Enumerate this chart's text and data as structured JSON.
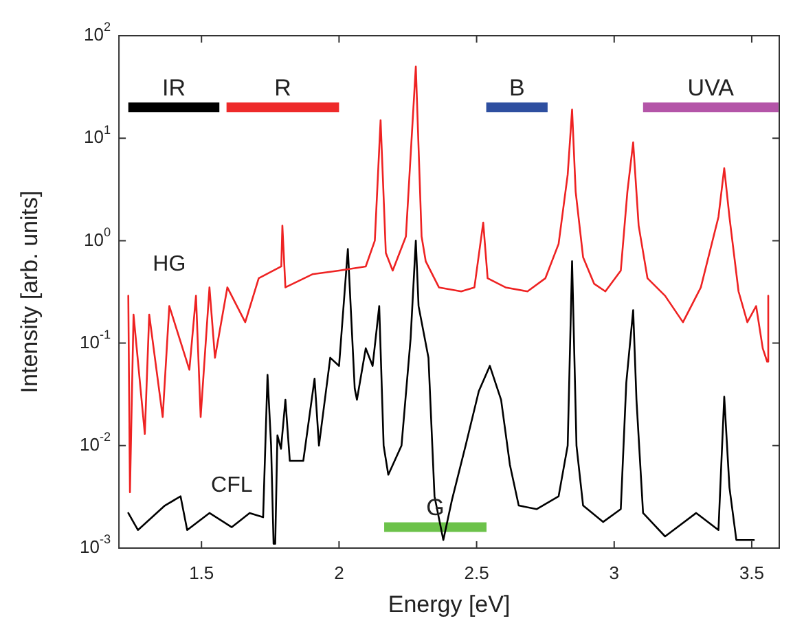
{
  "chart_data": {
    "type": "line",
    "xlabel": "Energy [eV]",
    "ylabel": "Intensity [arb. units]",
    "log": "y",
    "grid": false,
    "legend": false,
    "marker": "none",
    "line_style": "solid",
    "xlim": [
      1.2,
      3.6
    ],
    "xticks": [
      1.5,
      2,
      2.5,
      3,
      3.5
    ],
    "ylim": [
      0.001,
      100
    ],
    "yticks": [
      {
        "value": 0.001,
        "label": "10$^{-3}$"
      },
      {
        "value": 0.01,
        "label": "10$^{-2}$"
      },
      {
        "value": 0.1,
        "label": "10$^{-1}$"
      },
      {
        "value": 1,
        "label": "10$^{0}$"
      },
      {
        "value": 10,
        "label": "10$^{1}$"
      },
      {
        "value": 100,
        "label": "10$^{2}$"
      }
    ],
    "series": [
      {
        "name": "HG",
        "color": "#ee2222",
        "x": [
          1.234,
          1.24,
          1.253,
          1.294,
          1.31,
          1.359,
          1.383,
          1.456,
          1.48,
          1.497,
          1.529,
          1.549,
          1.594,
          1.659,
          1.708,
          1.79,
          1.794,
          1.805,
          1.903,
          2.0,
          2.097,
          2.13,
          2.151,
          2.17,
          2.195,
          2.243,
          2.279,
          2.3,
          2.315,
          2.363,
          2.444,
          2.492,
          2.524,
          2.54,
          2.605,
          2.685,
          2.75,
          2.798,
          2.831,
          2.847,
          2.86,
          2.887,
          2.927,
          2.968,
          3.024,
          3.048,
          3.069,
          3.089,
          3.121,
          3.185,
          3.25,
          3.315,
          3.379,
          3.4,
          3.419,
          3.452,
          3.484,
          3.516,
          3.54,
          3.556,
          3.56
        ],
        "values": [
          0.29,
          0.0035,
          0.19,
          0.013,
          0.19,
          0.019,
          0.23,
          0.055,
          0.29,
          0.019,
          0.35,
          0.072,
          0.35,
          0.16,
          0.43,
          0.56,
          1.4,
          0.35,
          0.47,
          0.51,
          0.56,
          1.0,
          15,
          0.76,
          0.51,
          1.1,
          50,
          1.1,
          0.63,
          0.35,
          0.32,
          0.35,
          1.5,
          0.43,
          0.35,
          0.32,
          0.43,
          0.93,
          4.4,
          19,
          3.0,
          0.69,
          0.38,
          0.32,
          0.51,
          3.0,
          9.1,
          1.4,
          0.43,
          0.29,
          0.16,
          0.35,
          1.7,
          5.1,
          1.7,
          0.32,
          0.16,
          0.23,
          0.089,
          0.066,
          0.29
        ]
      },
      {
        "name": "CFL",
        "color": "#000000",
        "x": [
          1.234,
          1.269,
          1.367,
          1.424,
          1.448,
          1.529,
          1.61,
          1.675,
          1.724,
          1.74,
          1.753,
          1.762,
          1.768,
          1.776,
          1.789,
          1.805,
          1.821,
          1.87,
          1.911,
          1.927,
          1.968,
          2.0,
          2.032,
          2.057,
          2.065,
          2.097,
          2.122,
          2.146,
          2.162,
          2.179,
          2.227,
          2.26,
          2.279,
          2.289,
          2.325,
          2.347,
          2.379,
          2.411,
          2.46,
          2.508,
          2.548,
          2.589,
          2.621,
          2.653,
          2.718,
          2.798,
          2.831,
          2.847,
          2.863,
          2.887,
          2.96,
          3.024,
          3.044,
          3.069,
          3.081,
          3.105,
          3.185,
          3.298,
          3.379,
          3.4,
          3.419,
          3.444,
          3.508
        ],
        "values": [
          0.0022,
          0.0015,
          0.0026,
          0.0032,
          0.0015,
          0.0022,
          0.0016,
          0.0022,
          0.002,
          0.049,
          0.01,
          0.0011,
          0.0011,
          0.0126,
          0.0093,
          0.028,
          0.0071,
          0.0071,
          0.045,
          0.01,
          0.072,
          0.06,
          0.83,
          0.036,
          0.028,
          0.089,
          0.06,
          0.23,
          0.01,
          0.0052,
          0.01,
          0.11,
          1.0,
          0.23,
          0.072,
          0.0032,
          0.0012,
          0.003,
          0.01,
          0.034,
          0.06,
          0.028,
          0.0065,
          0.0026,
          0.0024,
          0.0032,
          0.01,
          0.63,
          0.01,
          0.0026,
          0.0018,
          0.0024,
          0.041,
          0.21,
          0.028,
          0.0022,
          0.0013,
          0.0022,
          0.0015,
          0.03,
          0.0039,
          0.0012,
          0.0012
        ]
      },
      {
        "name": "IR",
        "color": "#000000",
        "x": [
          1.234,
          1.565
        ],
        "values": [
          20,
          20
        ]
      },
      {
        "name": "R",
        "color": "#ee2a2a",
        "x": [
          1.591,
          2.0
        ],
        "values": [
          20,
          20
        ]
      },
      {
        "name": "B",
        "color": "#2e4fa0",
        "x": [
          2.535,
          2.758
        ],
        "values": [
          20,
          20
        ]
      },
      {
        "name": "UVA",
        "color": "#b455a8",
        "x": [
          3.105,
          3.597
        ],
        "values": [
          20,
          20
        ]
      },
      {
        "name": "G",
        "color": "#6cc24a",
        "x": [
          2.164,
          2.536
        ],
        "values": [
          0.0016,
          0.0016
        ]
      }
    ]
  }
}
